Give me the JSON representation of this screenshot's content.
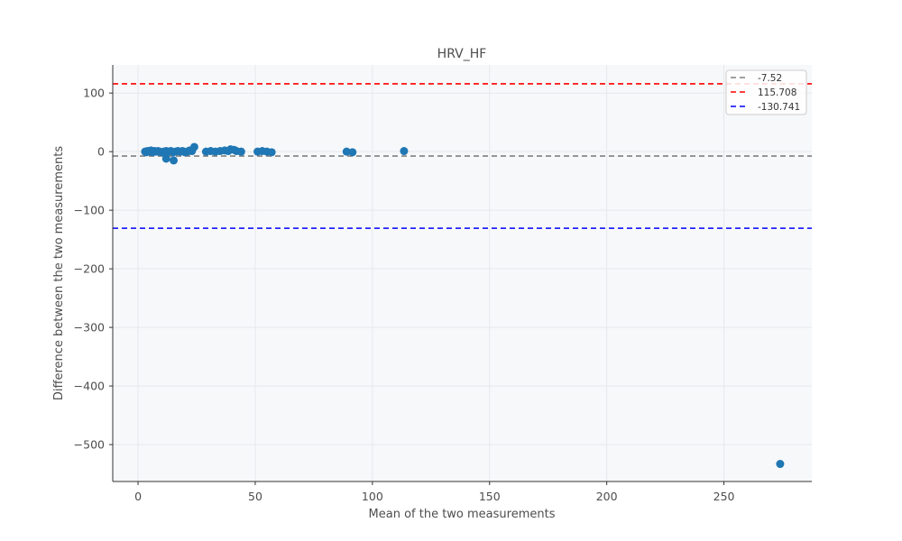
{
  "chart_data": {
    "type": "scatter",
    "title": "HRV_HF",
    "xlabel": "Mean of the two measurements",
    "ylabel": "Difference between the two measurements",
    "xlim": [
      -10.8,
      287.5
    ],
    "ylim": [
      -563,
      148
    ],
    "xticks": [
      0,
      50,
      100,
      150,
      200,
      250
    ],
    "yticks": [
      100,
      0,
      -100,
      -200,
      -300,
      -400,
      -500
    ],
    "grid": true,
    "legend_position": "top-right",
    "marker_color": "#1f77b4",
    "points": [
      [
        3.0,
        0
      ],
      [
        3.5,
        -1
      ],
      [
        4.0,
        1
      ],
      [
        4.8,
        0
      ],
      [
        5.5,
        2
      ],
      [
        6.2,
        -1
      ],
      [
        7.0,
        1
      ],
      [
        7.8,
        0
      ],
      [
        8.5,
        1
      ],
      [
        9.2,
        0
      ],
      [
        10.0,
        -1
      ],
      [
        11.0,
        0
      ],
      [
        12.0,
        1
      ],
      [
        12.0,
        -12
      ],
      [
        13.0,
        0
      ],
      [
        14.0,
        1
      ],
      [
        15.0,
        -1
      ],
      [
        15.2,
        -15
      ],
      [
        16.0,
        0
      ],
      [
        17.0,
        1
      ],
      [
        18.0,
        0
      ],
      [
        19.0,
        1
      ],
      [
        20.0,
        -1
      ],
      [
        21.0,
        0
      ],
      [
        22.0,
        2
      ],
      [
        23.0,
        1
      ],
      [
        24.0,
        8
      ],
      [
        29.0,
        0
      ],
      [
        31.0,
        1
      ],
      [
        33.0,
        0
      ],
      [
        35.0,
        1
      ],
      [
        37.0,
        2
      ],
      [
        38.5,
        1
      ],
      [
        39.5,
        4
      ],
      [
        41.0,
        3
      ],
      [
        42.0,
        1
      ],
      [
        44.0,
        0
      ],
      [
        51.0,
        0
      ],
      [
        53.0,
        1
      ],
      [
        55.0,
        0
      ],
      [
        57.0,
        -1
      ],
      [
        89.0,
        0
      ],
      [
        91.5,
        -1
      ],
      [
        113.5,
        1
      ],
      [
        274.0,
        -533
      ]
    ],
    "lines": [
      {
        "label": "-7.52",
        "y": -7.52,
        "color": "#808080"
      },
      {
        "label": "115.708",
        "y": 115.708,
        "color": "#ff0000"
      },
      {
        "label": "-130.741",
        "y": -130.741,
        "color": "#0000ff"
      }
    ]
  }
}
